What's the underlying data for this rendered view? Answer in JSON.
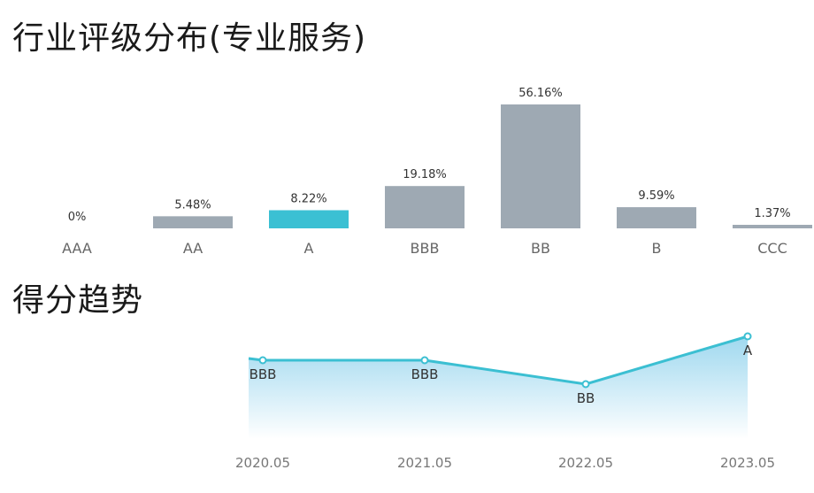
{
  "chart_data": [
    {
      "type": "bar",
      "title": "行业评级分布(专业服务)",
      "categories": [
        "AAA",
        "AA",
        "A",
        "BBB",
        "BB",
        "B",
        "CCC"
      ],
      "values": [
        0,
        5.48,
        8.22,
        19.18,
        56.16,
        9.59,
        1.37
      ],
      "value_labels": [
        "0%",
        "5.48%",
        "8.22%",
        "19.18%",
        "56.16%",
        "9.59%",
        "1.37%"
      ],
      "highlight_category": "A",
      "colors": {
        "default": "#9ea9b3",
        "highlight": "#3bc0d3"
      },
      "ylim": [
        0,
        56.16
      ]
    },
    {
      "type": "line",
      "title": "得分趋势",
      "x": [
        "2020.05",
        "2021.05",
        "2022.05",
        "2023.05"
      ],
      "ratings": [
        "BBB",
        "BBB",
        "BB",
        "A"
      ],
      "rating_scale": [
        "CCC",
        "B",
        "BB",
        "BBB",
        "A",
        "AA",
        "AAA"
      ],
      "colors": {
        "line": "#3bbfd2",
        "area_top": "#9fd8ef",
        "area_bottom": "#ffffff"
      }
    }
  ]
}
